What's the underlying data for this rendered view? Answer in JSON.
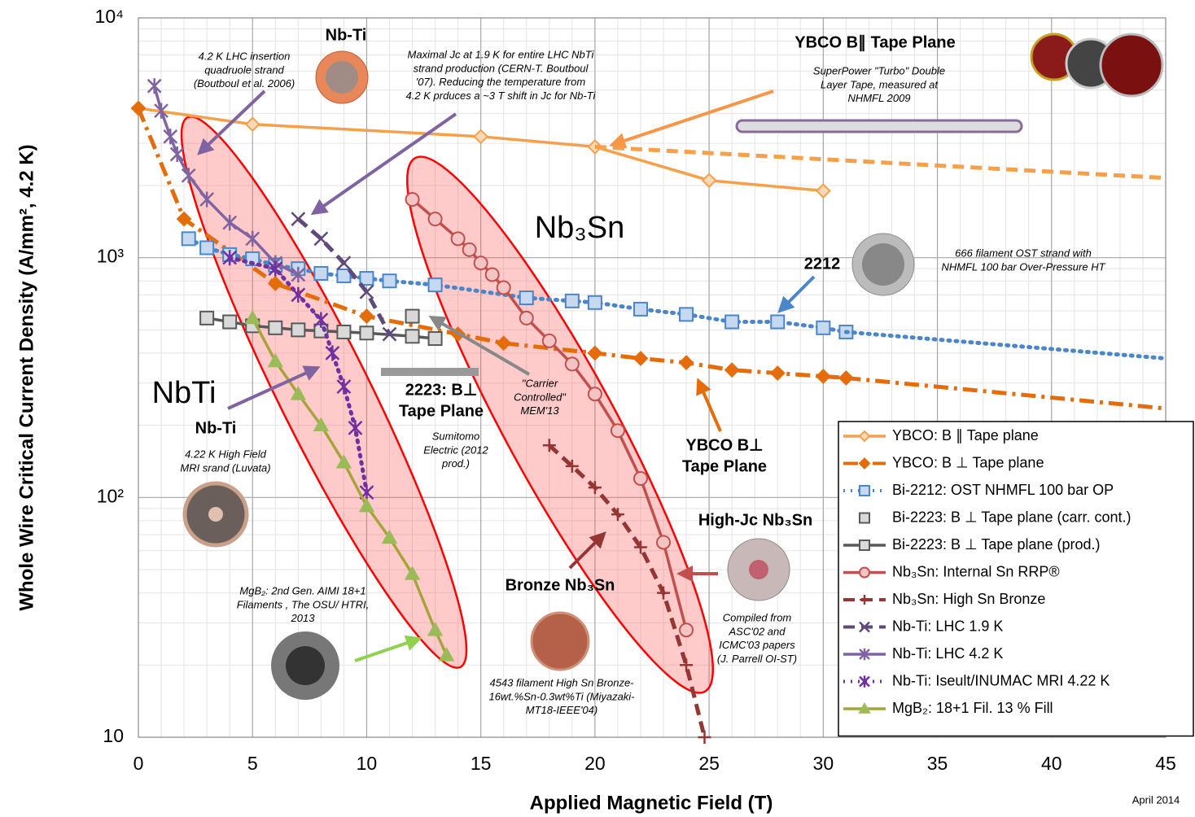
{
  "chart_data": {
    "type": "line",
    "x_label": "Applied Magnetic Field (T)",
    "y_label": "Whole Wire Critical Current Density (A/mm², 4.2 K)",
    "xlim": [
      0,
      45
    ],
    "xticks": [
      0,
      5,
      10,
      15,
      20,
      25,
      30,
      35,
      40,
      45
    ],
    "ylim": [
      10,
      10000
    ],
    "log_y": true,
    "yticks": [
      10,
      {
        "value": 100,
        "label": "10²"
      },
      {
        "value": 1000,
        "label": "10³"
      },
      {
        "value": 10000,
        "label": "10⁴"
      }
    ],
    "grid": true,
    "minor_grid": true,
    "legend": "bottom-right",
    "series": [
      {
        "name": "YBCO: B ∥ Tape plane",
        "color": "#f5a04a",
        "dash": "solid",
        "marker": "diamond",
        "marker_fill": "#fbd9b8",
        "x": [
          0,
          5,
          15,
          20,
          25,
          30
        ],
        "values": [
          4200,
          3600,
          3200,
          2900,
          2100,
          1900
        ]
      },
      {
        "name": "YBCO: B ⊥ Tape plane",
        "color": "#e46c0a",
        "dash": "dashdot",
        "marker": "diamond",
        "marker_fill": "#e46c0a",
        "x": [
          0,
          2,
          6,
          10,
          14,
          16,
          20,
          22,
          24,
          26,
          28,
          30,
          31
        ],
        "values": [
          4200,
          1450,
          780,
          570,
          480,
          440,
          400,
          380,
          365,
          340,
          330,
          320,
          315
        ]
      },
      {
        "name": "Bi-2212: OST NHMFL 100 bar OP",
        "color": "#4a86c8",
        "dash": "dot",
        "marker": "square",
        "marker_fill": "#c6d9f0",
        "x": [
          2.2,
          3,
          4,
          5,
          6,
          7,
          8,
          9,
          10,
          11,
          13,
          17,
          19,
          20,
          22,
          24,
          26,
          28,
          30,
          31
        ],
        "values": [
          1200,
          1100,
          1030,
          990,
          930,
          900,
          860,
          840,
          820,
          800,
          770,
          680,
          660,
          650,
          610,
          580,
          540,
          540,
          510,
          490
        ]
      },
      {
        "name": "Bi-2223: B ⊥ Tape plane (carr. cont.)",
        "color": "#595959",
        "dash": "none",
        "marker": "square",
        "marker_fill": "#d9d9d9",
        "x": [
          12
        ],
        "values": [
          570
        ]
      },
      {
        "name": "Bi-2223: B ⊥ Tape plane (prod.)",
        "color": "#595959",
        "dash": "solid",
        "marker": "square",
        "marker_fill": "#d9d9d9",
        "x": [
          3,
          4,
          5,
          6,
          7,
          8,
          9,
          10,
          12,
          13
        ],
        "values": [
          560,
          540,
          520,
          510,
          500,
          495,
          490,
          485,
          470,
          460
        ]
      },
      {
        "name": "Nb₃Sn: Internal Sn RRP®",
        "color": "#c0504d",
        "dash": "solid",
        "marker": "circle",
        "marker_fill": "#f2c4c3",
        "x": [
          12,
          13,
          14,
          14.5,
          15,
          15.5,
          16,
          17,
          18,
          19,
          20,
          21,
          22,
          23,
          24
        ],
        "values": [
          1750,
          1450,
          1200,
          1080,
          950,
          850,
          750,
          560,
          450,
          360,
          270,
          190,
          120,
          65,
          28
        ]
      },
      {
        "name": "Nb₃Sn: High Sn Bronze",
        "color": "#943634",
        "dash": "dash",
        "marker": "plus",
        "marker_fill": "#943634",
        "x": [
          18,
          19,
          20,
          21,
          22,
          23,
          24,
          24.8
        ],
        "values": [
          165,
          135,
          110,
          85,
          62,
          40,
          20,
          10
        ]
      },
      {
        "name": "Nb-Ti: LHC 1.9 K",
        "color": "#604a7b",
        "dash": "dash",
        "marker": "x",
        "marker_fill": "#604a7b",
        "x": [
          7,
          8,
          9,
          10,
          11
        ],
        "values": [
          1450,
          1200,
          950,
          720,
          480
        ]
      },
      {
        "name": "Nb-Ti: LHC 4.2 K",
        "color": "#8064a2",
        "dash": "solid",
        "marker": "asterisk",
        "marker_fill": "#8064a2",
        "x": [
          0.7,
          1,
          1.4,
          1.7,
          2.2,
          3,
          4,
          5,
          6,
          7
        ],
        "values": [
          5200,
          4100,
          3200,
          2700,
          2200,
          1750,
          1400,
          1200,
          950,
          850
        ]
      },
      {
        "name": "Nb-Ti: Iseult/INUMAC MRI 4.22 K",
        "color": "#7030a0",
        "dash": "dot",
        "marker": "asterisk",
        "marker_fill": "#b189d6",
        "x": [
          4,
          6,
          7,
          8,
          8.5,
          9,
          9.5,
          10
        ],
        "values": [
          1000,
          900,
          700,
          550,
          400,
          290,
          195,
          105
        ]
      },
      {
        "name": "MgB₂: 18+1 Fil. 13 % Fill",
        "color": "#a5a53c",
        "dash": "solid",
        "marker": "triangle",
        "marker_fill": "#9bbb59",
        "x": [
          5,
          6,
          7,
          8,
          9,
          10,
          11,
          12,
          13,
          13.5
        ],
        "values": [
          560,
          370,
          270,
          200,
          140,
          92,
          68,
          48,
          28,
          22
        ]
      },
      {
        "color": "#f5a04a",
        "dash": "dash",
        "marker": "none",
        "x": [
          20,
          45
        ],
        "values": [
          2900,
          2150
        ]
      },
      {
        "color": "#e46c0a",
        "dash": "dashdot",
        "marker": "none",
        "x": [
          31,
          45
        ],
        "values": [
          315,
          235
        ]
      },
      {
        "color": "#4a86c8",
        "dash": "dot",
        "marker": "none",
        "x": [
          31,
          45
        ],
        "values": [
          490,
          380
        ]
      }
    ],
    "annotations": [
      {
        "lines": [
          "Nb-Ti"
        ],
        "color": "#7030a0",
        "style": "bold"
      },
      {
        "lines": [
          "4.2 K LHC insertion",
          "quadruole strand",
          "(Boutboul et al. 2006)"
        ],
        "color": "#595959",
        "style": "italic"
      },
      {
        "lines": [
          "Maximal Jc at 1.9 K for entire LHC NbTi",
          "strand production (CERN-T. Boutboul",
          "'07). Reducing the temperature from",
          "4.2 K prduces a ~3 T shift in Jc for Nb-Ti"
        ],
        "color": "#595959",
        "style": "italic"
      },
      {
        "lines": [
          "YBCO B∥ Tape Plane"
        ],
        "color": "#f79646",
        "style": "bold"
      },
      {
        "lines": [
          "SuperPower \"Turbo\" Double",
          "Layer Tape, measured at",
          "NHMFL 2009"
        ],
        "color": "#f79646",
        "style": "italic"
      },
      {
        "lines": [
          "Nb₃Sn"
        ],
        "color": "#ff0000",
        "style": "big"
      },
      {
        "lines": [
          "2212"
        ],
        "color": "#4a86c8",
        "style": "bold"
      },
      {
        "lines": [
          "666 filament OST strand with",
          "NHMFL 100 bar Over-Pressure HT"
        ],
        "color": "#4a86c8",
        "style": "italic"
      },
      {
        "lines": [
          "NbTi"
        ],
        "color": "#ff0000",
        "style": "big"
      },
      {
        "lines": [
          "Nb-Ti"
        ],
        "color": "#7030a0",
        "style": "bold"
      },
      {
        "lines": [
          "4.22 K High Field",
          "MRI srand (Luvata)"
        ],
        "color": "#595959",
        "style": "italic"
      },
      {
        "lines": [
          "2223: B⊥",
          "Tape Plane"
        ],
        "color": "#7f7f7f",
        "style": "bold"
      },
      {
        "lines": [
          "Sumitomo",
          "Electric (2012",
          "prod.)"
        ],
        "color": "#595959",
        "style": "italic"
      },
      {
        "lines": [
          "\"Carrier",
          "Controlled\"",
          "MEM'13"
        ],
        "color": "#595959",
        "style": "italic"
      },
      {
        "lines": [
          "YBCO B⊥",
          "Tape Plane"
        ],
        "color": "#e46c0a",
        "style": "bold"
      },
      {
        "lines": [
          "High-Jc Nb₃Sn"
        ],
        "color": "#c0504d",
        "style": "bold"
      },
      {
        "lines": [
          "Bronze Nb₃Sn"
        ],
        "color": "#943634",
        "style": "bold"
      },
      {
        "lines": [
          "MgB₂: 2nd Gen. AIMI 18+1",
          "Filaments , The OSU/ HTRI,",
          "2013"
        ],
        "color": "#9bbb59",
        "style": "italic"
      },
      {
        "lines": [
          "4543 filament High Sn Bronze-",
          "16wt.%Sn-0.3wt%Ti (Miyazaki-",
          "MT18-IEEE'04)"
        ],
        "color": "#943634",
        "style": "italic"
      },
      {
        "lines": [
          "Compiled from",
          "ASC'02 and",
          "ICMC'03 papers",
          "(J. Parrell OI-ST)"
        ],
        "color": "#c0504d",
        "style": "italic"
      },
      {
        "lines": [
          "April 2014"
        ],
        "color": "#c0504d",
        "style": "small"
      }
    ]
  }
}
